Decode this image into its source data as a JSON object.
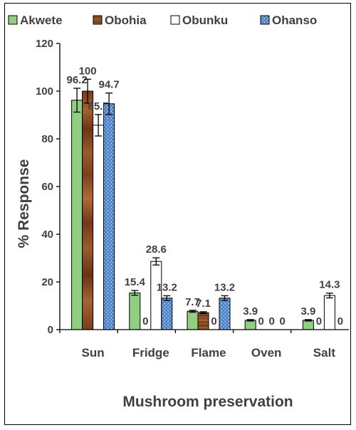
{
  "chart_data": {
    "type": "bar",
    "xlabel": "Mushroom preservation",
    "ylabel": "% Response",
    "ylim": [
      0,
      120
    ],
    "yticks": [
      0,
      20,
      40,
      60,
      80,
      100,
      120
    ],
    "grid": false,
    "legend_position": "top",
    "categories": [
      "Sun",
      "Fridge",
      "Flame",
      "Oven",
      "Salt"
    ],
    "series": [
      {
        "name": "Akwete",
        "color": "#8ed07f",
        "values": [
          96.2,
          15.4,
          7.7,
          3.9,
          3.9
        ],
        "errors": [
          5,
          1,
          0.4,
          0.3,
          0.3
        ]
      },
      {
        "name": "Obohia",
        "color": "#8b4a22",
        "values": [
          100,
          0,
          7.1,
          0,
          0
        ],
        "errors": [
          5,
          0,
          0.4,
          0,
          0
        ]
      },
      {
        "name": "Obunku",
        "color": "#ffffff",
        "values": [
          85.7,
          28.6,
          0,
          0,
          14.3
        ],
        "errors": [
          4.5,
          1.5,
          0,
          0,
          1
        ]
      },
      {
        "name": "Ohanso",
        "color": "#5b8fd4",
        "values": [
          94.7,
          13.2,
          13.2,
          0,
          0
        ],
        "errors": [
          4.5,
          1,
          1,
          0,
          0
        ]
      }
    ]
  }
}
